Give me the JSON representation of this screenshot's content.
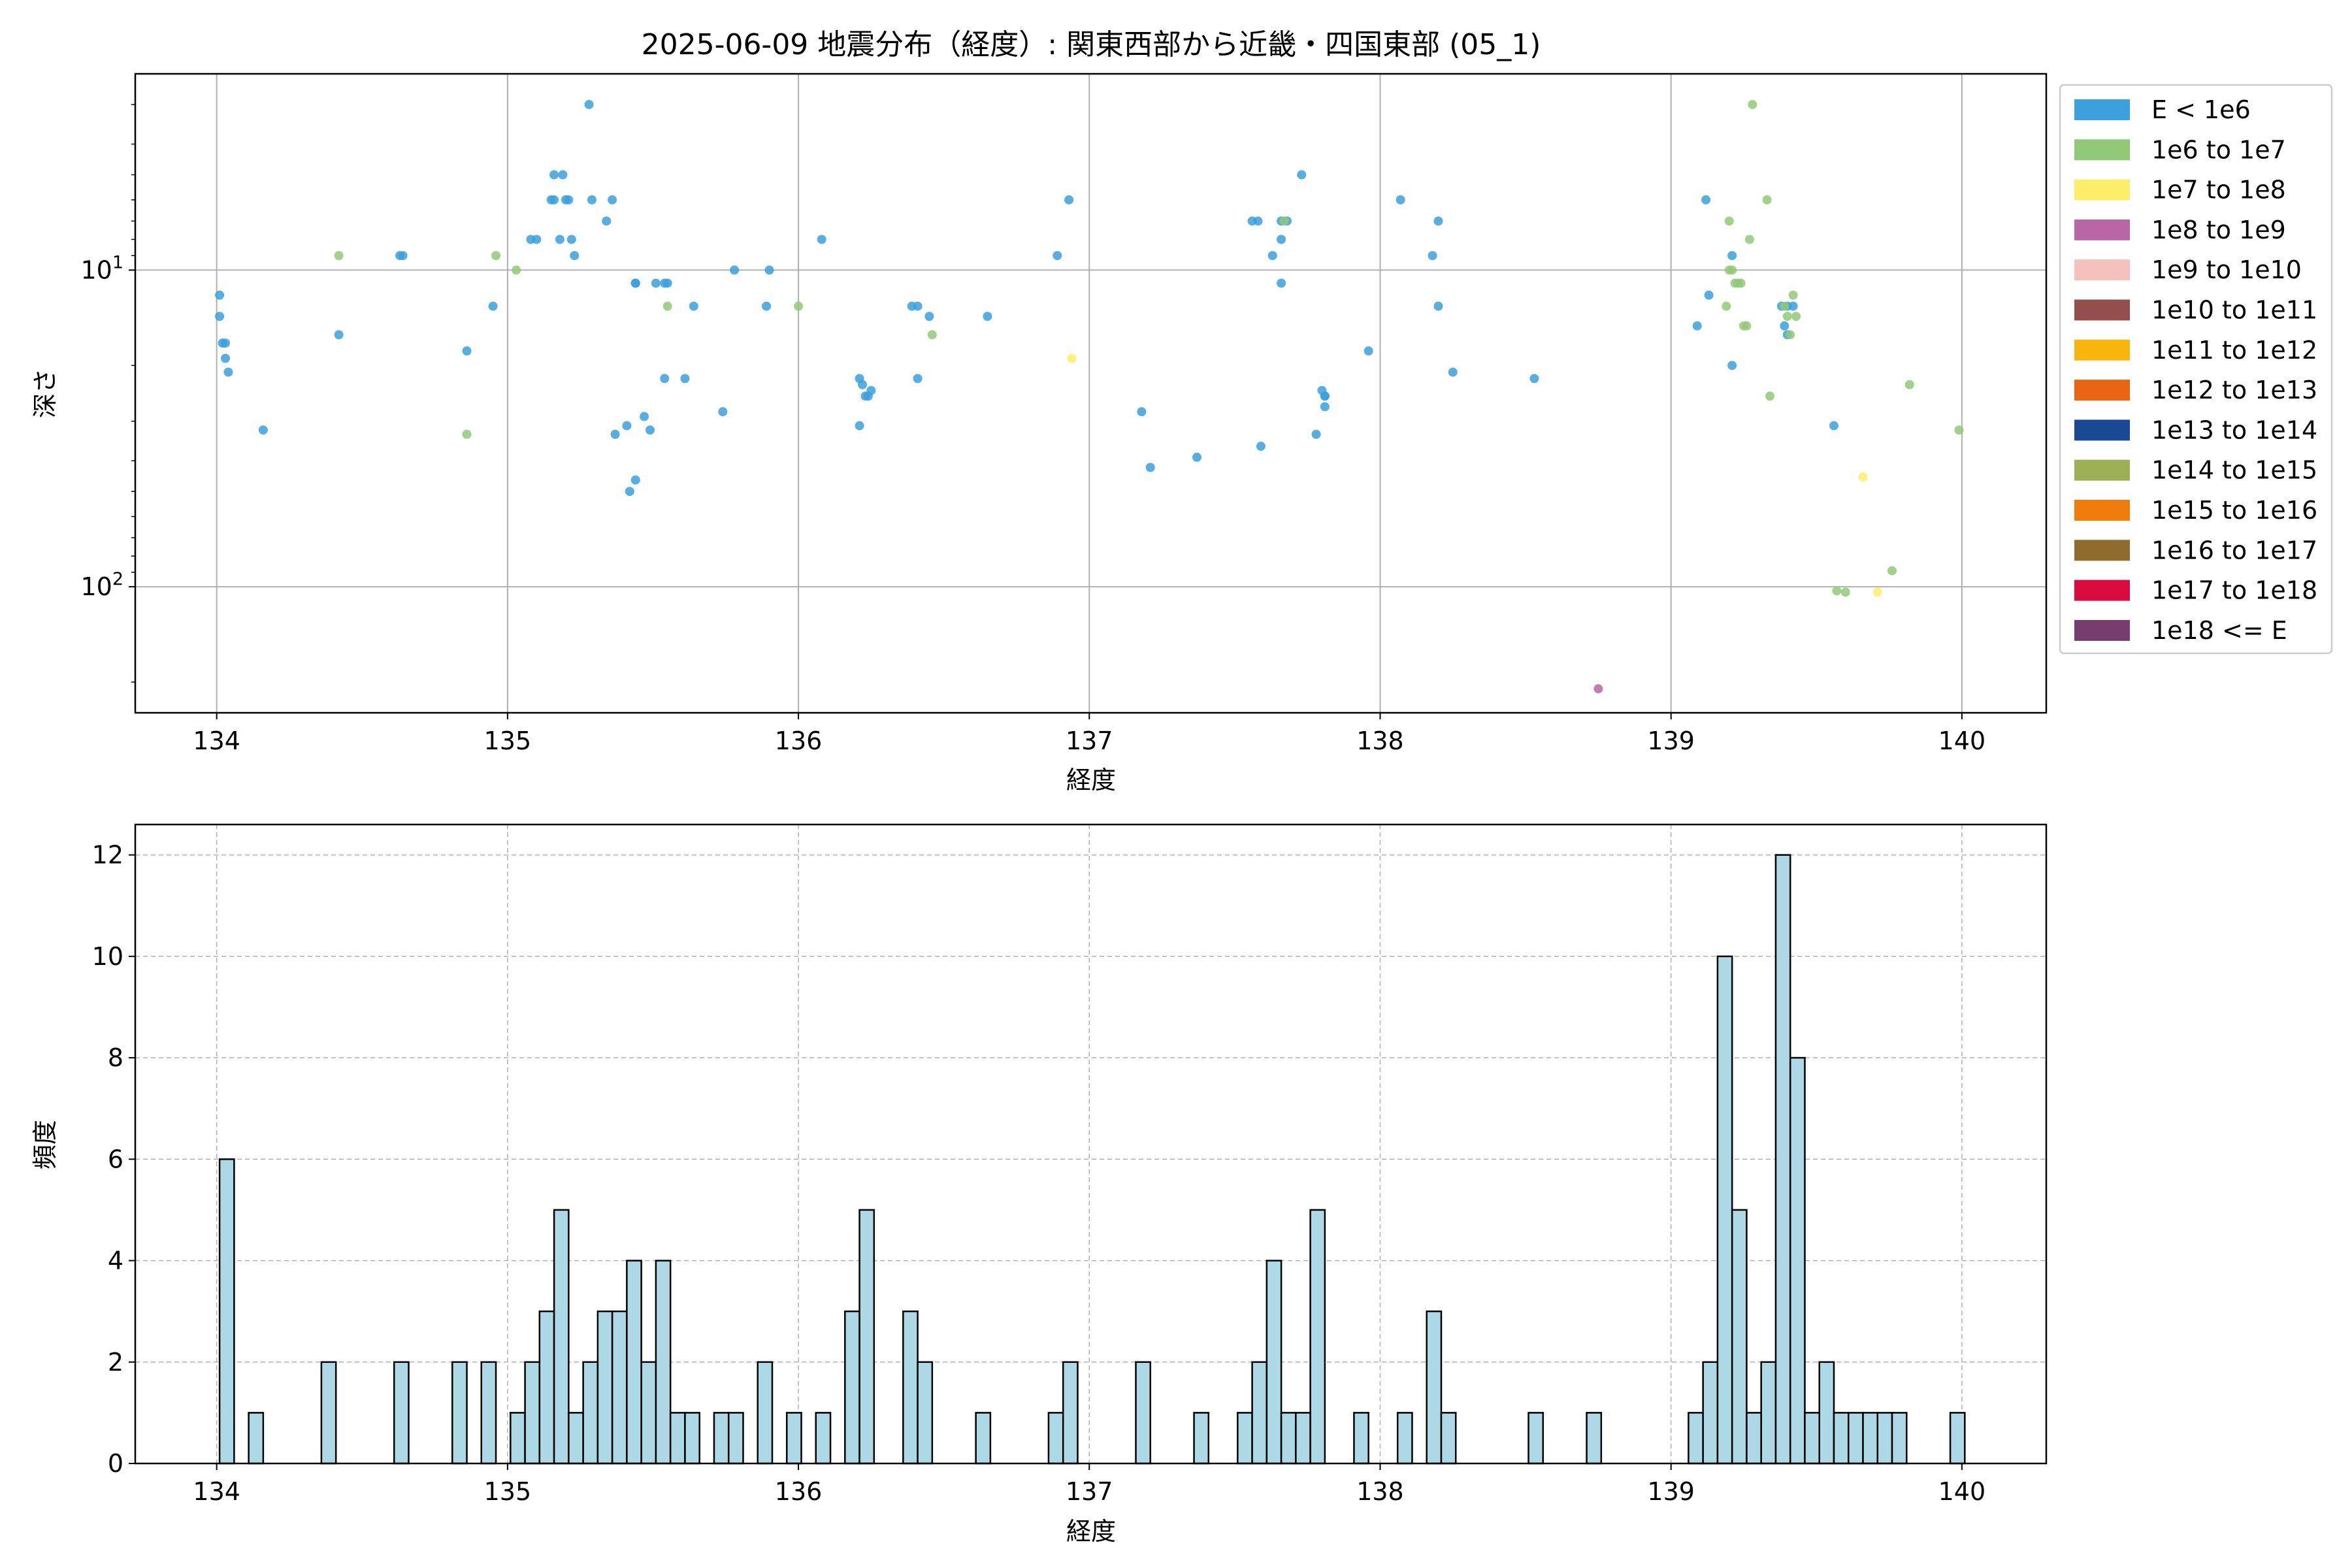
{
  "chart_data": [
    {
      "type": "scatter",
      "title": "2025-06-09 地震分布（経度）: 関東西部から近畿・四国東部 (05_1)",
      "xlabel": "経度",
      "ylabel": "深さ",
      "xlim": [
        133.72,
        140.29
      ],
      "ylim": [
        250,
        2.4
      ],
      "y_scale": "log",
      "y_inverted": true,
      "grid": true,
      "legend_position": "outside right, top",
      "x_ticks": [
        "134",
        "135",
        "136",
        "137",
        "138",
        "139",
        "140"
      ],
      "y_ticks": [
        {
          "value": 10,
          "base": "10",
          "exp": "1"
        },
        {
          "value": 100,
          "base": "10",
          "exp": "2"
        }
      ],
      "legend": [
        {
          "label": "E < 1e6",
          "color": "#3ca0dc"
        },
        {
          "label": "1e6 to 1e7",
          "color": "#92c978"
        },
        {
          "label": "1e7 to 1e8",
          "color": "#fdee6a"
        },
        {
          "label": "1e8 to 1e9",
          "color": "#b866a6"
        },
        {
          "label": "1e9 to 1e10",
          "color": "#f4c1bc"
        },
        {
          "label": "1e10 to 1e11",
          "color": "#944f4c"
        },
        {
          "label": "1e11 to 1e12",
          "color": "#f8b50e"
        },
        {
          "label": "1e12 to 1e13",
          "color": "#ea6513"
        },
        {
          "label": "1e13 to 1e14",
          "color": "#1a4994"
        },
        {
          "label": "1e14 to 1e15",
          "color": "#9caf55"
        },
        {
          "label": "1e15 to 1e16",
          "color": "#f07c0b"
        },
        {
          "label": "1e16 to 1e17",
          "color": "#8f6b2e"
        },
        {
          "label": "1e17 to 1e18",
          "color": "#d90a3e"
        },
        {
          "label": "1e18 <= E",
          "color": "#763d6e"
        }
      ],
      "series": [
        {
          "name": "E < 1e6",
          "color": "#3ca0dc",
          "points": [
            [
              134.01,
              12
            ],
            [
              134.01,
              14
            ],
            [
              134.02,
              17
            ],
            [
              134.03,
              17
            ],
            [
              134.03,
              19
            ],
            [
              134.04,
              21
            ],
            [
              134.16,
              32
            ],
            [
              134.42,
              16
            ],
            [
              134.63,
              9
            ],
            [
              134.64,
              9
            ],
            [
              134.86,
              18
            ],
            [
              134.95,
              13
            ],
            [
              135.08,
              8
            ],
            [
              135.1,
              8
            ],
            [
              135.15,
              6
            ],
            [
              135.16,
              5
            ],
            [
              135.16,
              6
            ],
            [
              135.18,
              8
            ],
            [
              135.19,
              5
            ],
            [
              135.2,
              6
            ],
            [
              135.21,
              6
            ],
            [
              135.22,
              8
            ],
            [
              135.23,
              9
            ],
            [
              135.28,
              3
            ],
            [
              135.29,
              6
            ],
            [
              135.34,
              7
            ],
            [
              135.36,
              6
            ],
            [
              135.37,
              33
            ],
            [
              135.41,
              31
            ],
            [
              135.42,
              50
            ],
            [
              135.44,
              11
            ],
            [
              135.44,
              11
            ],
            [
              135.44,
              46
            ],
            [
              135.47,
              29
            ],
            [
              135.49,
              32
            ],
            [
              135.51,
              11
            ],
            [
              135.54,
              11
            ],
            [
              135.55,
              11
            ],
            [
              135.54,
              22
            ],
            [
              135.61,
              22
            ],
            [
              135.64,
              13
            ],
            [
              135.74,
              28
            ],
            [
              135.78,
              10
            ],
            [
              135.89,
              13
            ],
            [
              135.9,
              10
            ],
            [
              136.08,
              8
            ],
            [
              136.21,
              22
            ],
            [
              136.21,
              31
            ],
            [
              136.22,
              23
            ],
            [
              136.23,
              25
            ],
            [
              136.24,
              25
            ],
            [
              136.25,
              24
            ],
            [
              136.39,
              13
            ],
            [
              136.41,
              13
            ],
            [
              136.45,
              14
            ],
            [
              136.41,
              22
            ],
            [
              136.65,
              14
            ],
            [
              136.89,
              9
            ],
            [
              136.93,
              6
            ],
            [
              137.18,
              28
            ],
            [
              137.21,
              42
            ],
            [
              137.37,
              39
            ],
            [
              137.56,
              7
            ],
            [
              137.58,
              7
            ],
            [
              137.59,
              36
            ],
            [
              137.63,
              9
            ],
            [
              137.66,
              8
            ],
            [
              137.66,
              7
            ],
            [
              137.68,
              7
            ],
            [
              137.66,
              11
            ],
            [
              137.73,
              5
            ],
            [
              137.78,
              33
            ],
            [
              137.8,
              24
            ],
            [
              137.81,
              25
            ],
            [
              137.81,
              25
            ],
            [
              137.81,
              27
            ],
            [
              137.96,
              18
            ],
            [
              138.07,
              6
            ],
            [
              138.18,
              9
            ],
            [
              138.2,
              7
            ],
            [
              138.2,
              13
            ],
            [
              138.25,
              21
            ],
            [
              138.53,
              22
            ],
            [
              139.09,
              15
            ],
            [
              139.12,
              6
            ],
            [
              139.13,
              12
            ],
            [
              139.21,
              9
            ],
            [
              139.21,
              20
            ],
            [
              139.38,
              13
            ],
            [
              139.39,
              15
            ],
            [
              139.4,
              16
            ],
            [
              139.42,
              13
            ],
            [
              139.4,
              13
            ],
            [
              139.56,
              31
            ]
          ]
        },
        {
          "name": "1e6 to 1e7",
          "color": "#92c978",
          "points": [
            [
              134.42,
              9
            ],
            [
              134.86,
              33
            ],
            [
              134.96,
              9
            ],
            [
              135.03,
              10
            ],
            [
              135.55,
              13
            ],
            [
              136.0,
              13
            ],
            [
              136.46,
              16
            ],
            [
              137.67,
              7
            ],
            [
              139.19,
              13
            ],
            [
              139.2,
              7
            ],
            [
              139.2,
              10
            ],
            [
              139.21,
              10
            ],
            [
              139.22,
              11
            ],
            [
              139.23,
              11
            ],
            [
              139.24,
              11
            ],
            [
              139.25,
              15
            ],
            [
              139.26,
              15
            ],
            [
              139.27,
              8
            ],
            [
              139.28,
              3
            ],
            [
              139.33,
              6
            ],
            [
              139.34,
              25
            ],
            [
              139.39,
              13
            ],
            [
              139.4,
              14
            ],
            [
              139.41,
              16
            ],
            [
              139.42,
              12
            ],
            [
              139.43,
              14
            ],
            [
              139.57,
              103
            ],
            [
              139.6,
              104
            ],
            [
              139.76,
              89
            ],
            [
              139.82,
              23
            ],
            [
              139.99,
              32
            ]
          ]
        },
        {
          "name": "1e7 to 1e8",
          "color": "#fdee6a",
          "points": [
            [
              136.94,
              19
            ],
            [
              139.66,
              45
            ],
            [
              139.71,
              104
            ]
          ]
        },
        {
          "name": "1e8 to 1e9",
          "color": "#b866a6",
          "points": [
            [
              138.75,
              210
            ]
          ]
        }
      ]
    },
    {
      "type": "bar",
      "title": "",
      "xlabel": "経度",
      "ylabel": "頻度",
      "xlim": [
        133.72,
        140.29
      ],
      "ylim": [
        0,
        12.6
      ],
      "grid": true,
      "grid_style": "dashed",
      "bar_color": "#add8e6",
      "bin_width": 0.05,
      "x_ticks": [
        "134",
        "135",
        "136",
        "137",
        "138",
        "139",
        "140"
      ],
      "y_ticks": [
        "0",
        "2",
        "4",
        "6",
        "8",
        "10",
        "12"
      ],
      "bins": [
        {
          "start": 134.01,
          "count": 6
        },
        {
          "start": 134.11,
          "count": 1
        },
        {
          "start": 134.36,
          "count": 2
        },
        {
          "start": 134.61,
          "count": 2
        },
        {
          "start": 134.81,
          "count": 2
        },
        {
          "start": 134.91,
          "count": 2
        },
        {
          "start": 135.01,
          "count": 1
        },
        {
          "start": 135.06,
          "count": 2
        },
        {
          "start": 135.11,
          "count": 3
        },
        {
          "start": 135.16,
          "count": 5
        },
        {
          "start": 135.21,
          "count": 1
        },
        {
          "start": 135.26,
          "count": 2
        },
        {
          "start": 135.31,
          "count": 3
        },
        {
          "start": 135.36,
          "count": 3
        },
        {
          "start": 135.41,
          "count": 4
        },
        {
          "start": 135.46,
          "count": 2
        },
        {
          "start": 135.51,
          "count": 4
        },
        {
          "start": 135.56,
          "count": 1
        },
        {
          "start": 135.61,
          "count": 1
        },
        {
          "start": 135.71,
          "count": 1
        },
        {
          "start": 135.76,
          "count": 1
        },
        {
          "start": 135.86,
          "count": 2
        },
        {
          "start": 135.96,
          "count": 1
        },
        {
          "start": 136.06,
          "count": 1
        },
        {
          "start": 136.16,
          "count": 3
        },
        {
          "start": 136.21,
          "count": 5
        },
        {
          "start": 136.36,
          "count": 3
        },
        {
          "start": 136.41,
          "count": 2
        },
        {
          "start": 136.61,
          "count": 1
        },
        {
          "start": 136.86,
          "count": 1
        },
        {
          "start": 136.91,
          "count": 2
        },
        {
          "start": 137.16,
          "count": 2
        },
        {
          "start": 137.36,
          "count": 1
        },
        {
          "start": 137.51,
          "count": 1
        },
        {
          "start": 137.56,
          "count": 2
        },
        {
          "start": 137.61,
          "count": 4
        },
        {
          "start": 137.66,
          "count": 1
        },
        {
          "start": 137.71,
          "count": 1
        },
        {
          "start": 137.76,
          "count": 5
        },
        {
          "start": 137.91,
          "count": 1
        },
        {
          "start": 138.06,
          "count": 1
        },
        {
          "start": 138.16,
          "count": 3
        },
        {
          "start": 138.21,
          "count": 1
        },
        {
          "start": 138.51,
          "count": 1
        },
        {
          "start": 138.71,
          "count": 1
        },
        {
          "start": 139.06,
          "count": 1
        },
        {
          "start": 139.11,
          "count": 2
        },
        {
          "start": 139.16,
          "count": 10
        },
        {
          "start": 139.21,
          "count": 5
        },
        {
          "start": 139.26,
          "count": 1
        },
        {
          "start": 139.31,
          "count": 2
        },
        {
          "start": 139.36,
          "count": 12
        },
        {
          "start": 139.41,
          "count": 8
        },
        {
          "start": 139.46,
          "count": 1
        },
        {
          "start": 139.51,
          "count": 2
        },
        {
          "start": 139.56,
          "count": 1
        },
        {
          "start": 139.61,
          "count": 1
        },
        {
          "start": 139.66,
          "count": 1
        },
        {
          "start": 139.71,
          "count": 1
        },
        {
          "start": 139.76,
          "count": 1
        },
        {
          "start": 139.96,
          "count": 1
        }
      ]
    }
  ]
}
